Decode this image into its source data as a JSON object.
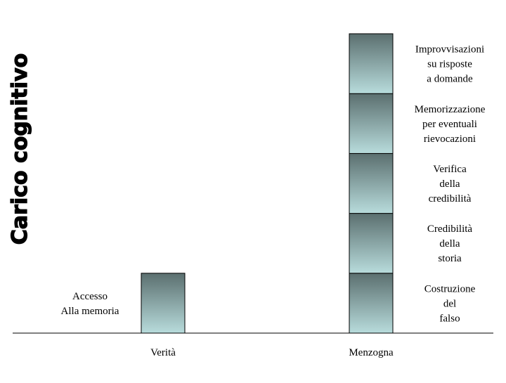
{
  "chart_data": {
    "type": "bar",
    "stacked": true,
    "ylabel": "Carico cognitivo",
    "xlabel": "",
    "categories": [
      "Verità",
      "Menzogna"
    ],
    "series": [
      {
        "label_lines": [
          "Accesso",
          "Alla memoria"
        ],
        "values": [
          1,
          0
        ]
      },
      {
        "label_lines": [
          "Costruzione",
          "del",
          "falso"
        ],
        "values": [
          0,
          1
        ]
      },
      {
        "label_lines": [
          "Credibilità",
          "della",
          "storia"
        ],
        "values": [
          0,
          1
        ]
      },
      {
        "label_lines": [
          "Verifica",
          "della",
          "credibilità"
        ],
        "values": [
          0,
          1
        ]
      },
      {
        "label_lines": [
          "Memorizzazione",
          "per eventuali",
          "rievocazioni"
        ],
        "values": [
          0,
          1
        ]
      },
      {
        "label_lines": [
          "Improvvisazioni",
          "su risposte",
          "a domande"
        ],
        "values": [
          0,
          1
        ]
      }
    ],
    "ylim": [
      0,
      5
    ],
    "grid": false,
    "legend": "none",
    "colors": {
      "bar_top": "#5b6f6f",
      "bar_bottom": "#b8dcdc",
      "axis": "#000000"
    }
  }
}
